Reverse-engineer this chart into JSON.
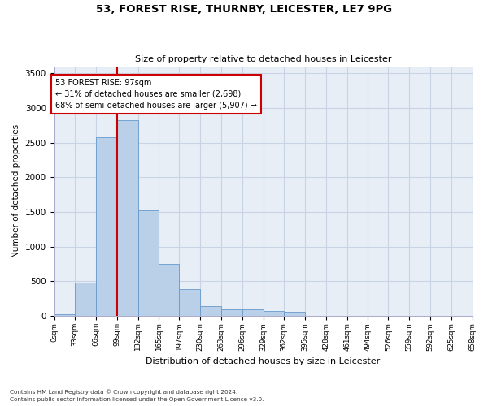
{
  "title_line1": "53, FOREST RISE, THURNBY, LEICESTER, LE7 9PG",
  "title_line2": "Size of property relative to detached houses in Leicester",
  "xlabel": "Distribution of detached houses by size in Leicester",
  "ylabel": "Number of detached properties",
  "bin_edges": [
    0,
    33,
    66,
    99,
    132,
    165,
    197,
    230,
    263,
    296,
    329,
    362,
    395,
    428,
    461,
    494,
    526,
    559,
    592,
    625,
    658
  ],
  "bin_labels": [
    "0sqm",
    "33sqm",
    "66sqm",
    "99sqm",
    "132sqm",
    "165sqm",
    "197sqm",
    "230sqm",
    "263sqm",
    "296sqm",
    "329sqm",
    "362sqm",
    "395sqm",
    "428sqm",
    "461sqm",
    "494sqm",
    "526sqm",
    "559sqm",
    "592sqm",
    "625sqm",
    "658sqm"
  ],
  "bar_heights": [
    30,
    480,
    2580,
    2820,
    1520,
    750,
    390,
    145,
    90,
    90,
    70,
    60,
    0,
    0,
    0,
    0,
    0,
    0,
    0,
    0
  ],
  "bar_color": "#bad0e8",
  "bar_edge_color": "#6699cc",
  "grid_color": "#c8d4e4",
  "background_color": "#e8eef6",
  "vline_x": 99,
  "vline_color": "#cc0000",
  "annotation_text": "53 FOREST RISE: 97sqm\n← 31% of detached houses are smaller (2,698)\n68% of semi-detached houses are larger (5,907) →",
  "annotation_box_color": "#ffffff",
  "annotation_box_edge": "#cc0000",
  "ylim": [
    0,
    3600
  ],
  "yticks": [
    0,
    500,
    1000,
    1500,
    2000,
    2500,
    3000,
    3500
  ],
  "footnote1": "Contains HM Land Registry data © Crown copyright and database right 2024.",
  "footnote2": "Contains public sector information licensed under the Open Government Licence v3.0."
}
